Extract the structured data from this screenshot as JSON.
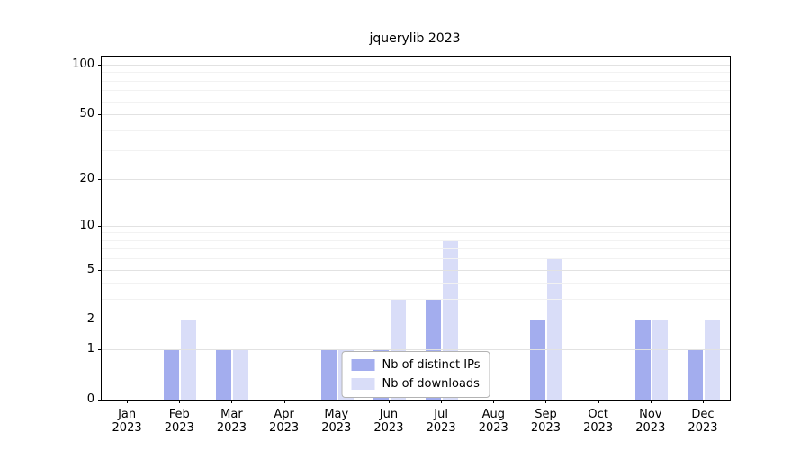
{
  "title": "jquerylib 2023",
  "chart_data": {
    "type": "bar",
    "title": "jquerylib 2023",
    "scale": "log1p",
    "grid": true,
    "legend_position": "lower center",
    "categories": [
      "Jan",
      "Feb",
      "Mar",
      "Apr",
      "May",
      "Jun",
      "Jul",
      "Aug",
      "Sep",
      "Oct",
      "Nov",
      "Dec"
    ],
    "year_label": "2023",
    "series": [
      {
        "name": "Nb of distinct IPs",
        "color": "#a3adee",
        "values": [
          0,
          1,
          1,
          0,
          1,
          1,
          3,
          0,
          2,
          0,
          2,
          1
        ]
      },
      {
        "name": "Nb of downloads",
        "color": "#d9ddf8",
        "values": [
          0,
          2,
          1,
          0,
          1,
          3,
          8,
          0,
          6,
          0,
          2,
          2
        ]
      }
    ],
    "yticks": [
      0,
      1,
      2,
      5,
      10,
      20,
      50,
      100
    ],
    "minor_gridlines": [
      3,
      4,
      6,
      7,
      8,
      9,
      30,
      40,
      60,
      70,
      80,
      90
    ],
    "ylim": [
      0,
      112
    ],
    "xlabel": "",
    "ylabel": ""
  }
}
